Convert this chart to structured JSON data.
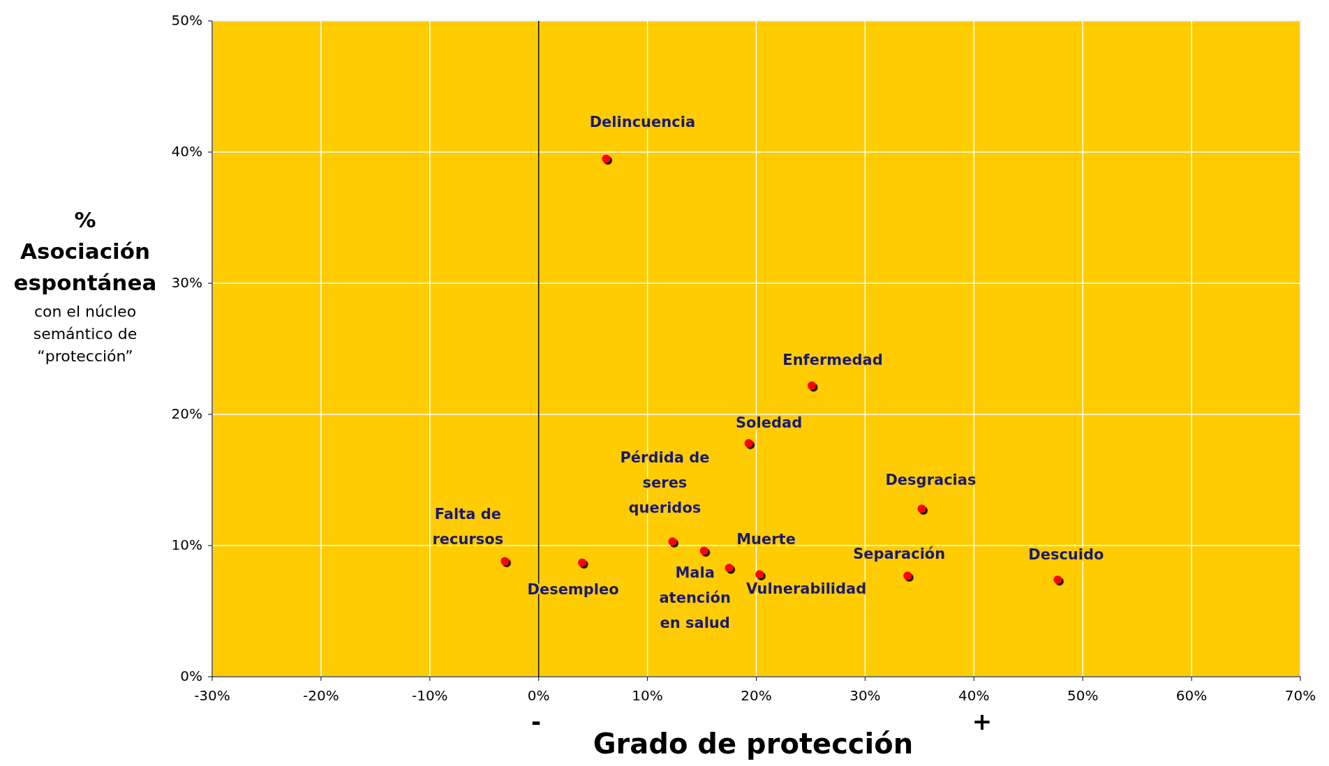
{
  "chart_data": {
    "type": "scatter",
    "xlabel": "Grado de protección",
    "ylabel": "%\nAsociación\nespontánea\ncon el núcleo\nsemántico de\n“protección”",
    "x": [
      6.2,
      25.1,
      19.3,
      35.2,
      12.3,
      15.2,
      17.5,
      20.3,
      33.9,
      47.7,
      -3.1,
      4.0
    ],
    "series": [
      {
        "color": "#ff0000",
        "values": [
          39.5,
          22.2,
          17.8,
          12.8,
          10.3,
          9.6,
          8.3,
          7.8,
          7.7,
          7.4,
          8.8,
          8.7
        ]
      }
    ],
    "marker": "circle",
    "grid": true,
    "xlim": [
      -30,
      70
    ],
    "ylim": [
      0,
      50
    ],
    "xticks": [
      {
        "value": -30,
        "label": "-30%"
      },
      {
        "value": -20,
        "label": "-20%"
      },
      {
        "value": -10,
        "label": "-10%"
      },
      {
        "value": 0,
        "label": "0%"
      },
      {
        "value": 10,
        "label": "10%"
      },
      {
        "value": 20,
        "label": "20%"
      },
      {
        "value": 30,
        "label": "30%"
      },
      {
        "value": 40,
        "label": "40%"
      },
      {
        "value": 50,
        "label": "50%"
      },
      {
        "value": 60,
        "label": "60%"
      },
      {
        "value": 70,
        "label": "70%"
      }
    ],
    "yticks": [
      {
        "value": 0,
        "label": "0%"
      },
      {
        "value": 10,
        "label": "10%"
      },
      {
        "value": 20,
        "label": "20%"
      },
      {
        "value": 30,
        "label": "30%"
      },
      {
        "value": 40,
        "label": "40%"
      },
      {
        "value": 50,
        "label": "50%"
      }
    ],
    "ref_lines": [
      {
        "axis": "x",
        "value": 0,
        "label": null,
        "color": "#000000"
      }
    ],
    "annotations": [
      {
        "text": "Delincuencia",
        "x": 6.2,
        "y": 39.5
      },
      {
        "text": "Enfermedad",
        "x": 25.1,
        "y": 22.2
      },
      {
        "text": "Soledad",
        "x": 19.3,
        "y": 17.8
      },
      {
        "text": "Desgracias",
        "x": 35.2,
        "y": 12.8
      },
      {
        "text": "Pérdida de\nseres\nqueridos",
        "x": 12.3,
        "y": 10.3
      },
      {
        "text": "Mala\natención\nen salud",
        "x": 15.2,
        "y": 9.6
      },
      {
        "text": "Muerte",
        "x": 17.5,
        "y": 8.3
      },
      {
        "text": "Vulnerabilidad",
        "x": 20.3,
        "y": 7.8
      },
      {
        "text": "Separación",
        "x": 33.9,
        "y": 7.7
      },
      {
        "text": "Descuido",
        "x": 47.7,
        "y": 7.4
      },
      {
        "text": "Falta de\nrecursos",
        "x": -3.1,
        "y": 8.8
      },
      {
        "text": "Desempleo",
        "x": 4.0,
        "y": 8.7
      },
      "-",
      "+"
    ]
  }
}
